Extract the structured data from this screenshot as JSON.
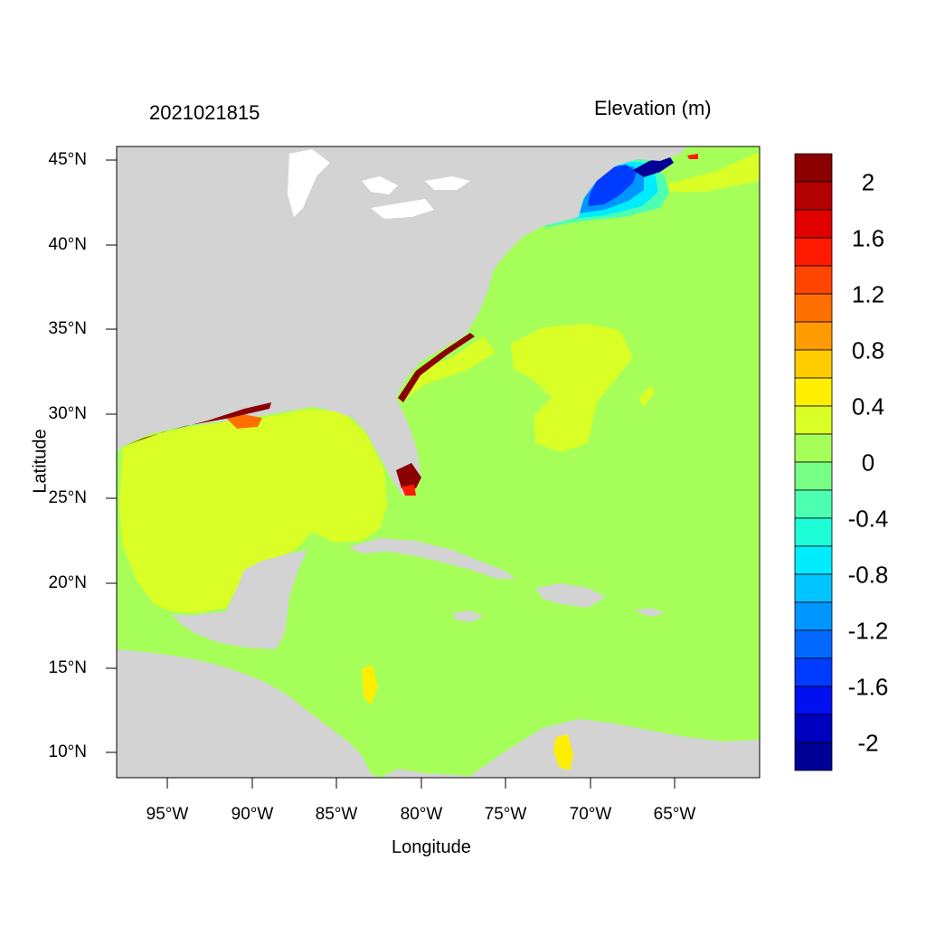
{
  "header": {
    "timestamp": "2021021815",
    "variable_title": "Elevation (m)"
  },
  "axes": {
    "x_label": "Longitude",
    "y_label": "Latitude",
    "x_ticks": [
      "95°W",
      "90°W",
      "85°W",
      "80°W",
      "75°W",
      "70°W",
      "65°W"
    ],
    "y_ticks": [
      "45°N",
      "40°N",
      "35°N",
      "30°N",
      "25°N",
      "20°N",
      "15°N",
      "10°N"
    ]
  },
  "colorbar": {
    "labels": [
      "2",
      "1.6",
      "1.2",
      "0.8",
      "0.4",
      "0",
      "-0.4",
      "-0.8",
      "-1.2",
      "-1.6",
      "-2"
    ],
    "colors": [
      "#8b0000",
      "#b30000",
      "#e00000",
      "#ff1a00",
      "#ff4500",
      "#ff7000",
      "#ff9a00",
      "#ffcc00",
      "#ffee00",
      "#d9ff26",
      "#a6ff59",
      "#78ff85",
      "#4dffb0",
      "#1effd9",
      "#00ecff",
      "#00c3ff",
      "#0096ff",
      "#0068ff",
      "#003cff",
      "#0010f0",
      "#0000c0",
      "#000096"
    ]
  },
  "colors": {
    "land": "#d3d3d3",
    "ocean_zero": "#a6ff59",
    "gulf_positive": "#d9ff26",
    "surge_high": "#8b0000",
    "negative_low": "#0010f0"
  }
}
